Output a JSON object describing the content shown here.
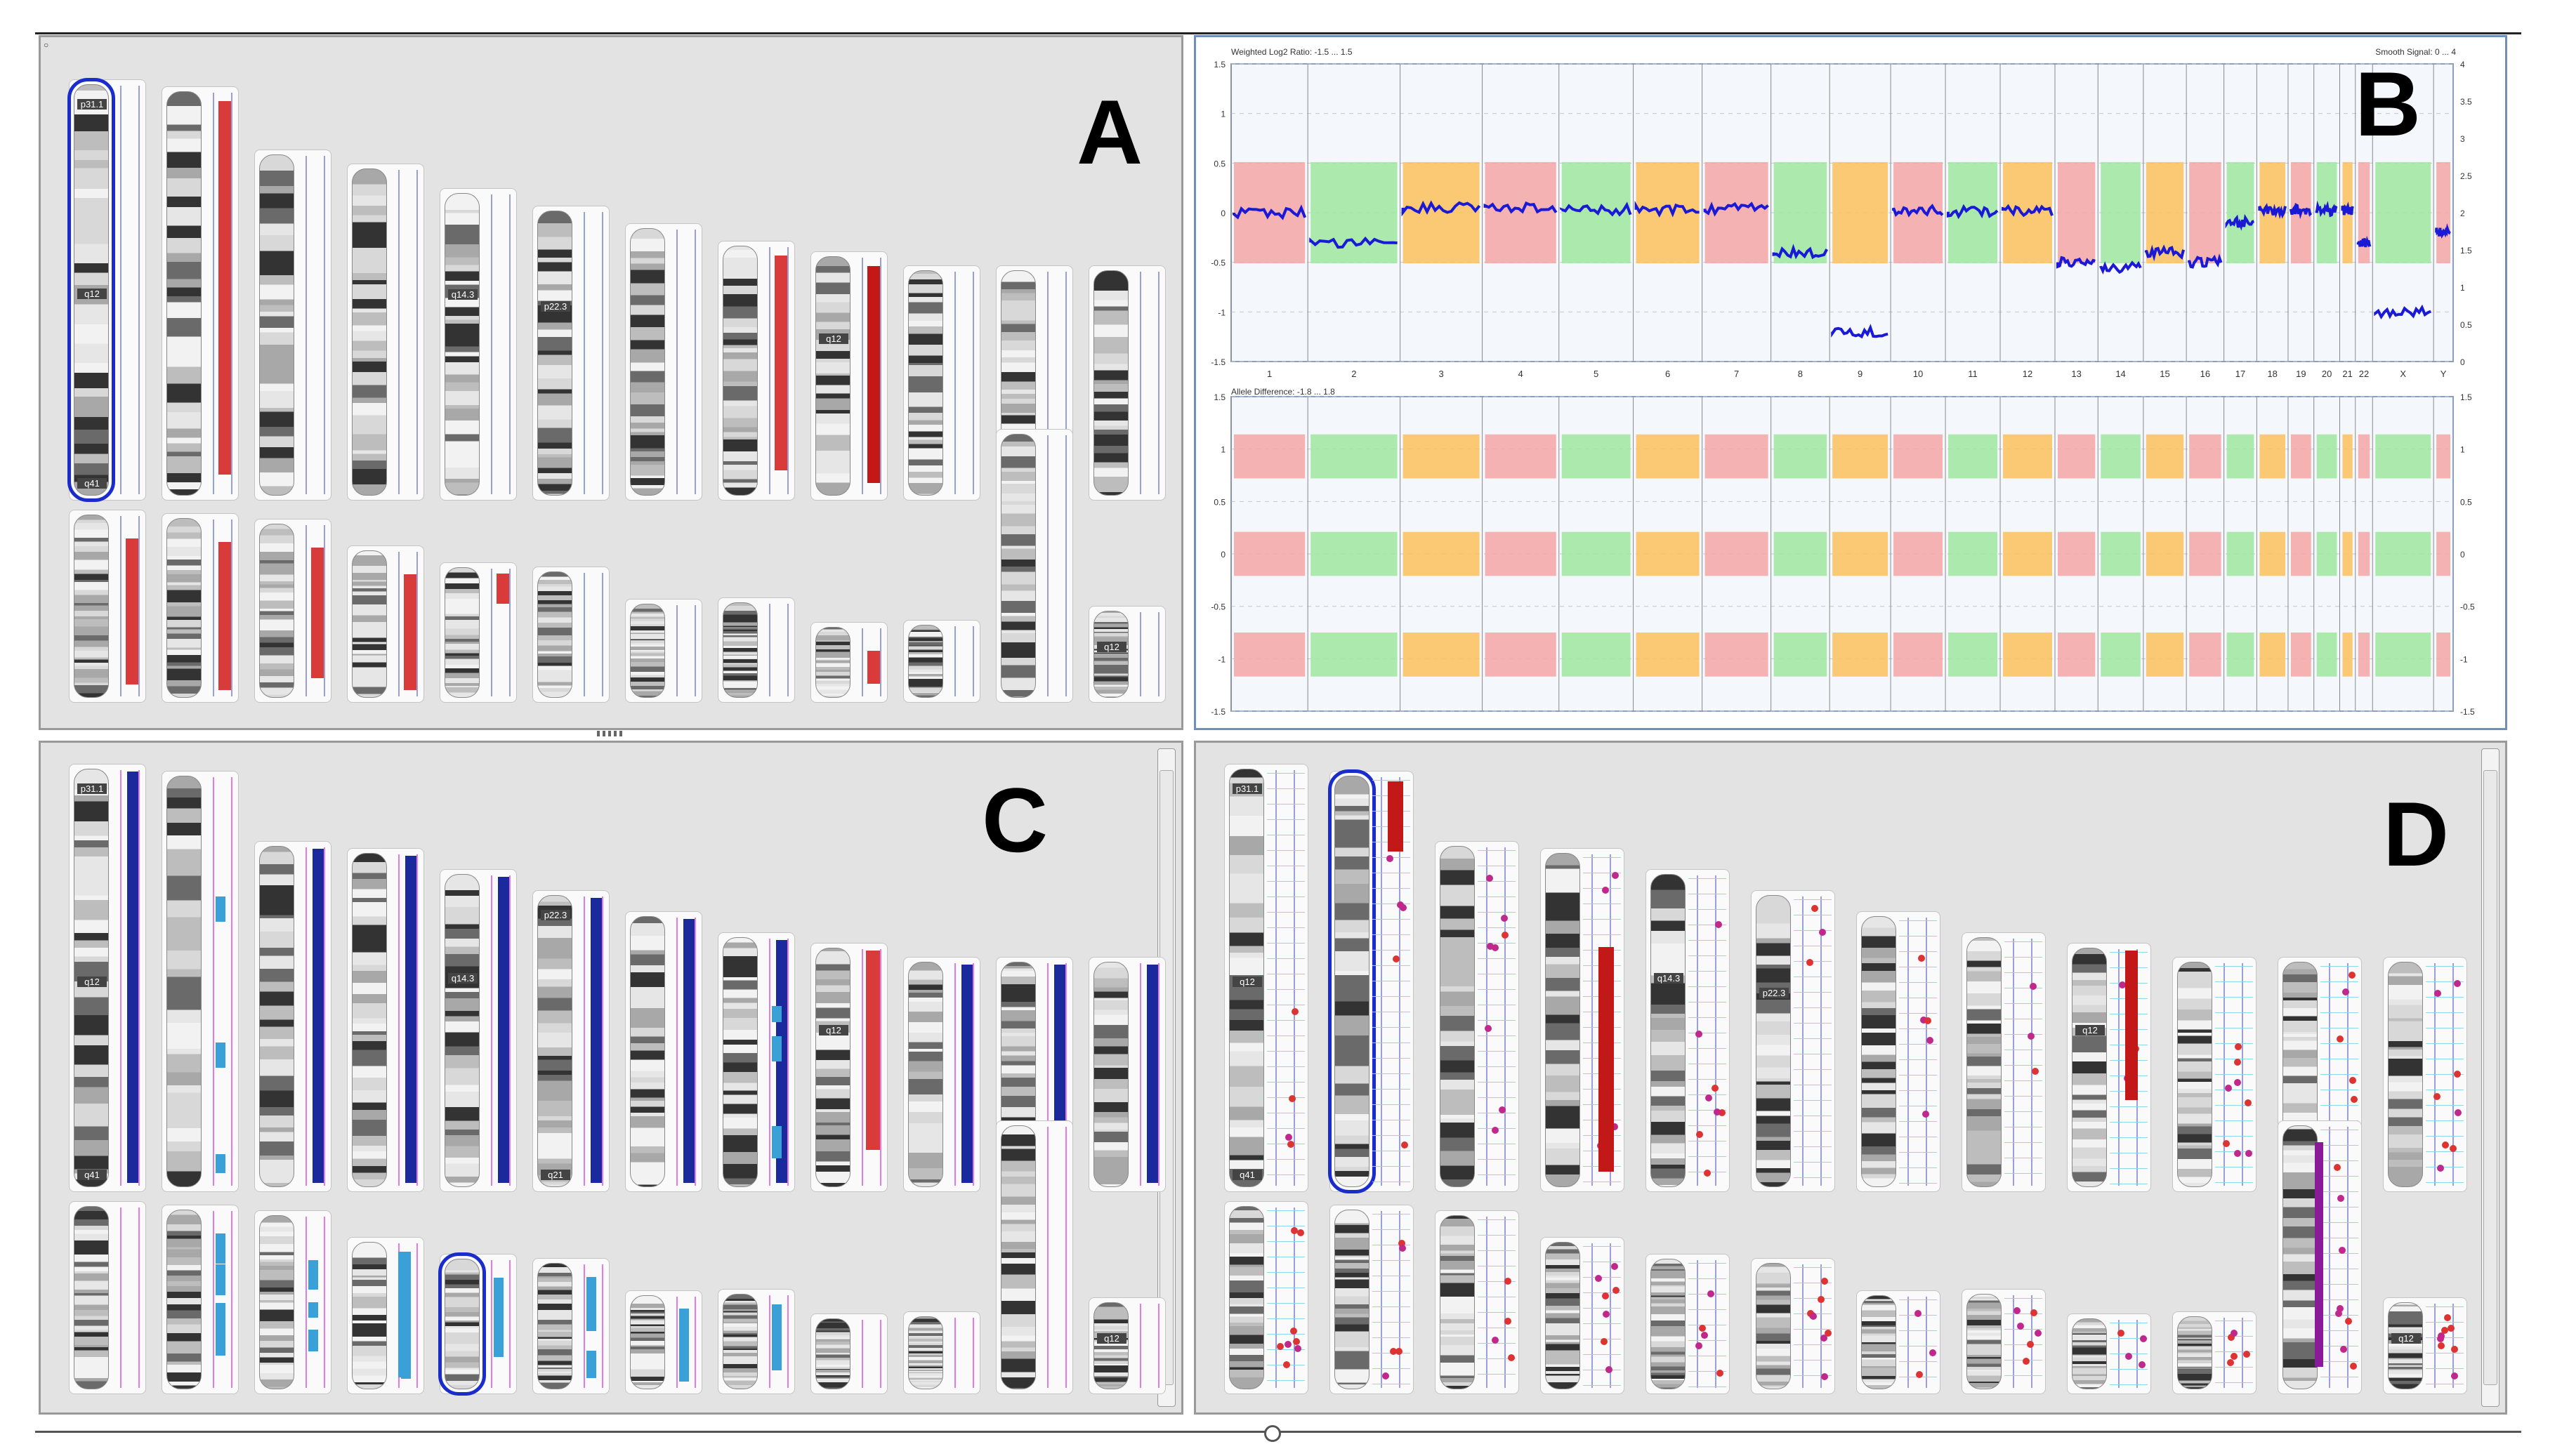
{
  "figure": {
    "label_a": "A",
    "label_b": "B",
    "label_c": "C",
    "label_d": "D"
  },
  "colors": {
    "cn_gain": "#f4a6a6",
    "cn_loss": "#9ee89e",
    "loh": "#fbc15a",
    "smooth_line": "#1a1ad6",
    "track_red": "#d93a3a",
    "track_blue": "#1a2a9c",
    "track_light_blue": "#3aa0d8",
    "track_purple": "#8a1a9a",
    "selection": "#1a2ccc"
  },
  "panel_b": {
    "top_plot_title": "Weighted Log2 Ratio: -1.5 ... 1.5",
    "top_plot_right_title": "Smooth Signal: 0 ... 4",
    "bottom_plot_title": "Allele Difference: -1.8 ... 1.8",
    "top_left_ticks": [
      "1.5",
      "1",
      "0.5",
      "0",
      "-0.5",
      "-1",
      "-1.5"
    ],
    "top_right_ticks": [
      "4",
      "3.5",
      "3",
      "2.5",
      "2",
      "1.5",
      "1",
      "0.5",
      "0"
    ],
    "bottom_right_ticks": [
      "1.5",
      "1",
      "0.5",
      "0",
      "-0.5",
      "-1",
      "-1.5"
    ],
    "bottom_left_ticks": [
      "1.5",
      "1",
      "0.5",
      "0",
      "-0.5",
      "-1",
      "-1.5"
    ],
    "chromosome_labels": [
      "1",
      "2",
      "3",
      "4",
      "5",
      "6",
      "7",
      "8",
      "9",
      "10",
      "11",
      "12",
      "13",
      "14",
      "15",
      "16",
      "17",
      "18",
      "19",
      "20",
      "21",
      "22",
      "X",
      "Y"
    ]
  },
  "ideogram": {
    "row1": [
      "1",
      "2",
      "3",
      "4",
      "5",
      "6",
      "7",
      "8",
      "9",
      "10",
      "11",
      "12"
    ],
    "row2": [
      "13",
      "14",
      "15",
      "16",
      "17",
      "18",
      "19",
      "20",
      "21",
      "22",
      "X",
      "Y"
    ],
    "band_labels_a": {
      "1": [
        "p31.1",
        "q12",
        "q41"
      ],
      "6": [
        "p22.3"
      ],
      "5": [
        "q14.3"
      ],
      "9": [
        "q12"
      ],
      "Y": [
        "q12"
      ]
    },
    "band_labels_c": {
      "1": [
        "p31.1",
        "q12",
        "q41"
      ],
      "6": [
        "p22.3",
        "q21"
      ],
      "5": [
        "q14.3"
      ],
      "9": [
        "q12"
      ],
      "Y": [
        "q12"
      ]
    },
    "band_labels_d": {
      "1": [
        "p31.1",
        "q12",
        "q41"
      ],
      "6": [
        "p22.3"
      ],
      "5": [
        "q14.3"
      ],
      "9": [
        "q12"
      ],
      "Y": [
        "q12"
      ]
    },
    "selected_a": "1",
    "selected_c": "17",
    "selected_d": "2"
  }
}
